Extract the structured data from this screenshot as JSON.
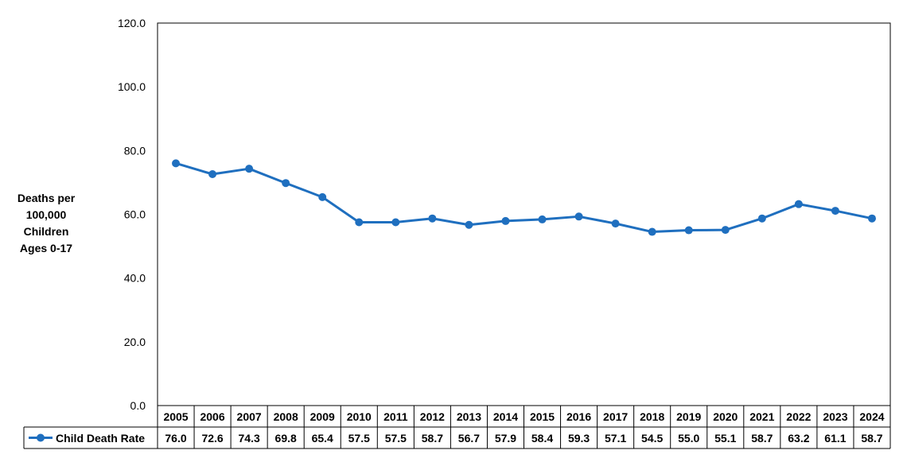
{
  "chart_data": {
    "type": "line",
    "title": "",
    "xlabel": "",
    "ylabel": [
      "Deaths per",
      "100,000",
      "Children",
      "Ages 0-17"
    ],
    "ylim": [
      0,
      120
    ],
    "yticks": [
      "0.0",
      "20.0",
      "40.0",
      "60.0",
      "80.0",
      "100.0",
      "120.0"
    ],
    "grid": false,
    "legend": "data-table",
    "categories": [
      "2005",
      "2006",
      "2007",
      "2008",
      "2009",
      "2010",
      "2011",
      "2012",
      "2013",
      "2014",
      "2015",
      "2016",
      "2017",
      "2018",
      "2019",
      "2020",
      "2021",
      "2022",
      "2023",
      "2024"
    ],
    "series": [
      {
        "name": "Child Death Rate",
        "color": "#1f6fbf",
        "values": [
          76.0,
          72.6,
          74.3,
          69.8,
          65.4,
          57.5,
          57.5,
          58.7,
          56.7,
          57.9,
          58.4,
          59.3,
          57.1,
          54.5,
          55.0,
          55.1,
          58.7,
          63.2,
          61.1,
          58.7
        ],
        "labels": [
          "76.0",
          "72.6",
          "74.3",
          "69.8",
          "65.4",
          "57.5",
          "57.5",
          "58.7",
          "56.7",
          "57.9",
          "58.4",
          "59.3",
          "57.1",
          "54.5",
          "55.0",
          "55.1",
          "58.7",
          "63.2",
          "61.1",
          "58.7"
        ]
      }
    ]
  }
}
